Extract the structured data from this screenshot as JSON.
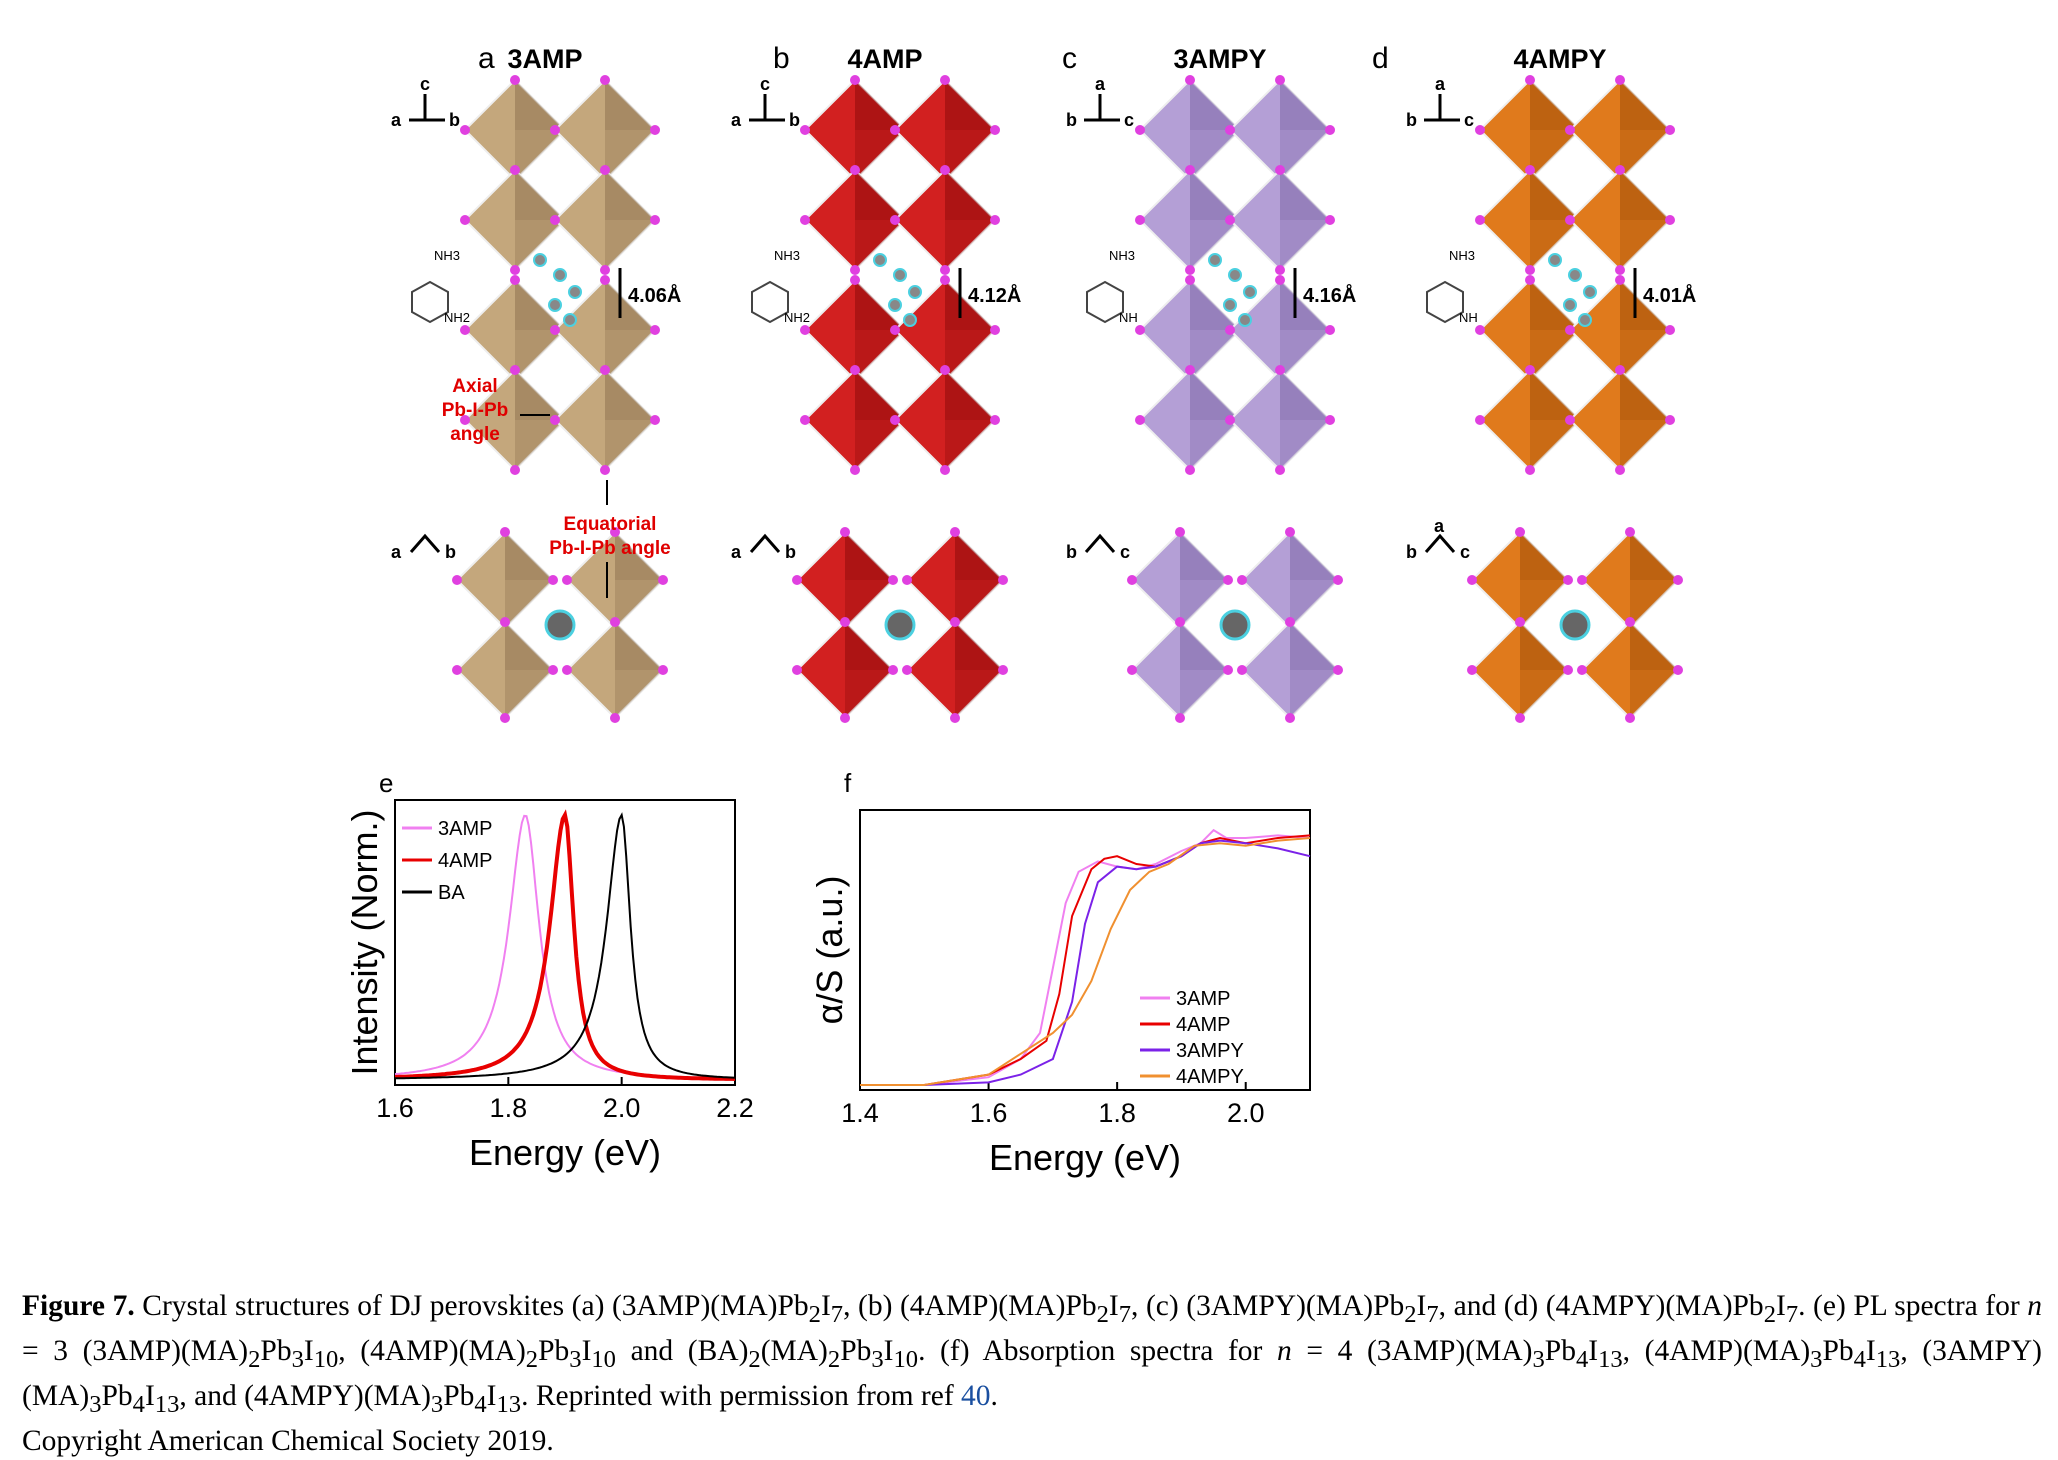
{
  "panels": [
    {
      "letter": "a",
      "title": "3AMP",
      "dist": "4.06Å",
      "axes_top": [
        "c",
        "a",
        "b"
      ],
      "axes_bottom": [
        "a",
        "b"
      ],
      "color": "#c4a77c",
      "dark": "#8f7350"
    },
    {
      "letter": "b",
      "title": "4AMP",
      "dist": "4.12Å",
      "axes_top": [
        "c",
        "a",
        "b"
      ],
      "axes_bottom": [
        "a",
        "b"
      ],
      "color": "#d22020",
      "dark": "#8e0b0b"
    },
    {
      "letter": "c",
      "title": "3AMPY",
      "dist": "4.16Å",
      "axes_top": [
        "a",
        "b",
        "c"
      ],
      "axes_bottom": [
        "b",
        "c"
      ],
      "color": "#b49fd6",
      "dark": "#7d66a8"
    },
    {
      "letter": "d",
      "title": "4AMPY",
      "dist": "4.01Å",
      "axes_top": [
        "a",
        "b",
        "c"
      ],
      "axes_bottom": [
        "b",
        "c",
        "a"
      ],
      "color": "#e07a1c",
      "dark": "#a04f0a"
    }
  ],
  "annotations": {
    "axial": [
      "Axial",
      "Pb-I-Pb",
      "angle"
    ],
    "equatorial": [
      "Equatorial",
      "Pb-I-Pb  angle"
    ],
    "nh3": "NH",
    "sub3": "3",
    "nh2": "NH",
    "sub2": "2",
    "nh": "NH",
    "plus": "+"
  },
  "chart_data": [
    {
      "panel": "e",
      "type": "line",
      "xlabel": "Energy (eV)",
      "ylabel": "Intensity (Norm.)",
      "xlim": [
        1.6,
        2.2
      ],
      "xticks": [
        "1.6",
        "1.8",
        "2.0",
        "2.2"
      ],
      "legend": "top-left",
      "series": [
        {
          "name": "3AMP",
          "color": "#f080f0",
          "peak": 1.83,
          "wl": 0.065,
          "wr": 0.055
        },
        {
          "name": "4AMP",
          "color": "#e80000",
          "peak": 1.9,
          "wl": 0.06,
          "wr": 0.035
        },
        {
          "name": "BA",
          "color": "#000000",
          "peak": 2.0,
          "wl": 0.06,
          "wr": 0.035
        }
      ]
    },
    {
      "panel": "f",
      "type": "line",
      "xlabel": "Energy (eV)",
      "ylabel": "α/S (a.u.)",
      "xlim": [
        1.4,
        2.1
      ],
      "xticks": [
        "1.4",
        "1.6",
        "1.8",
        "2.0"
      ],
      "legend": "bottom-right",
      "series": [
        {
          "name": "3AMP",
          "color": "#f080f0",
          "points": [
            [
              1.4,
              0.0
            ],
            [
              1.5,
              0.0
            ],
            [
              1.6,
              0.03
            ],
            [
              1.65,
              0.1
            ],
            [
              1.68,
              0.2
            ],
            [
              1.7,
              0.45
            ],
            [
              1.72,
              0.7
            ],
            [
              1.74,
              0.82
            ],
            [
              1.77,
              0.86
            ],
            [
              1.8,
              0.84
            ],
            [
              1.83,
              0.83
            ],
            [
              1.86,
              0.85
            ],
            [
              1.9,
              0.9
            ],
            [
              1.93,
              0.93
            ],
            [
              1.95,
              0.98
            ],
            [
              1.97,
              0.95
            ],
            [
              2.0,
              0.95
            ],
            [
              2.05,
              0.96
            ],
            [
              2.1,
              0.95
            ]
          ]
        },
        {
          "name": "4AMP",
          "color": "#e80000",
          "points": [
            [
              1.4,
              0.0
            ],
            [
              1.5,
              0.0
            ],
            [
              1.6,
              0.04
            ],
            [
              1.65,
              0.1
            ],
            [
              1.69,
              0.17
            ],
            [
              1.71,
              0.35
            ],
            [
              1.73,
              0.65
            ],
            [
              1.76,
              0.83
            ],
            [
              1.78,
              0.87
            ],
            [
              1.8,
              0.88
            ],
            [
              1.83,
              0.85
            ],
            [
              1.86,
              0.84
            ],
            [
              1.9,
              0.88
            ],
            [
              1.93,
              0.93
            ],
            [
              1.96,
              0.95
            ],
            [
              2.0,
              0.93
            ],
            [
              2.05,
              0.95
            ],
            [
              2.1,
              0.96
            ]
          ]
        },
        {
          "name": "3AMPY",
          "color": "#7b22e8",
          "points": [
            [
              1.4,
              0.0
            ],
            [
              1.5,
              0.0
            ],
            [
              1.6,
              0.01
            ],
            [
              1.65,
              0.04
            ],
            [
              1.7,
              0.1
            ],
            [
              1.73,
              0.32
            ],
            [
              1.75,
              0.62
            ],
            [
              1.77,
              0.78
            ],
            [
              1.8,
              0.84
            ],
            [
              1.83,
              0.83
            ],
            [
              1.86,
              0.84
            ],
            [
              1.9,
              0.88
            ],
            [
              1.93,
              0.93
            ],
            [
              1.96,
              0.94
            ],
            [
              2.0,
              0.93
            ],
            [
              2.05,
              0.91
            ],
            [
              2.1,
              0.88
            ]
          ]
        },
        {
          "name": "4AMPY",
          "color": "#f09030",
          "points": [
            [
              1.4,
              0.0
            ],
            [
              1.5,
              0.0
            ],
            [
              1.6,
              0.04
            ],
            [
              1.65,
              0.12
            ],
            [
              1.7,
              0.2
            ],
            [
              1.73,
              0.27
            ],
            [
              1.76,
              0.4
            ],
            [
              1.79,
              0.6
            ],
            [
              1.82,
              0.75
            ],
            [
              1.85,
              0.82
            ],
            [
              1.88,
              0.85
            ],
            [
              1.92,
              0.92
            ],
            [
              1.96,
              0.93
            ],
            [
              2.0,
              0.92
            ],
            [
              2.05,
              0.94
            ],
            [
              2.1,
              0.95
            ]
          ]
        }
      ]
    }
  ],
  "caption": {
    "label": "Figure 7.",
    "text1": " Crystal structures of DJ perovskites (a) (3AMP)(MA)Pb",
    "text2": "I",
    "text3": ", (b) (4AMP)(MA)Pb",
    "text4": ", (c) (3AMPY)(MA)Pb",
    "text5": ", and (d) (4AMPY)(MA)Pb",
    "text6": ". (e) PL spectra for ",
    "n": "n",
    "text7": " = 3 (3AMP)(MA)",
    "text8": "Pb",
    "text9": ", (4AMP)(MA)",
    "text10": " and (BA)",
    "text11": "(MA)",
    "text12": ". (f) Absorption spectra for ",
    "text13": " = 4 (3AMP)(MA)",
    "text14": ", (4AMP)(MA)",
    "text15": ", (3AMPY)(MA)",
    "text16": ", and (4AMPY)(MA)",
    "text17": ". Reprinted with permission from ref ",
    "ref": "40",
    "text18": ".",
    "text19": "Copyright American Chemical Society 2019.",
    "s2": "2",
    "s3": "3",
    "s4": "4",
    "s7": "7",
    "s10": "10",
    "s13": "13"
  }
}
